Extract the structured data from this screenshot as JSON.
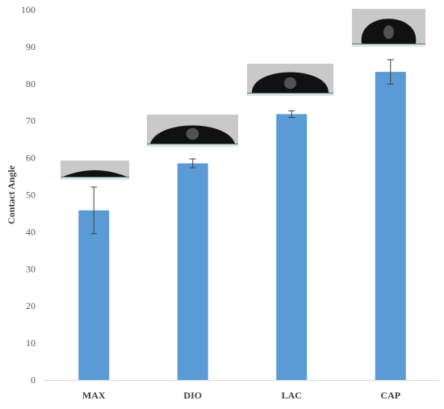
{
  "chart_data": {
    "type": "bar",
    "title": "",
    "xlabel": "",
    "ylabel": "Contact Angle",
    "categories": [
      "MAX",
      "DIO",
      "LAC",
      "CAP"
    ],
    "values": [
      45.8,
      58.5,
      71.8,
      83.2
    ],
    "error": [
      6.3,
      1.2,
      0.9,
      3.3
    ],
    "ylim": [
      0,
      100
    ],
    "yticks": [
      0,
      10,
      20,
      30,
      40,
      50,
      60,
      70,
      80,
      90,
      100
    ],
    "grid": false,
    "legend": "none",
    "bar_color": "#5b9bd5",
    "axis_color": "#d9d9d9",
    "inset_images": [
      "water-droplet-photo-max",
      "water-droplet-photo-dio",
      "water-droplet-photo-lac",
      "water-droplet-photo-cap"
    ]
  }
}
